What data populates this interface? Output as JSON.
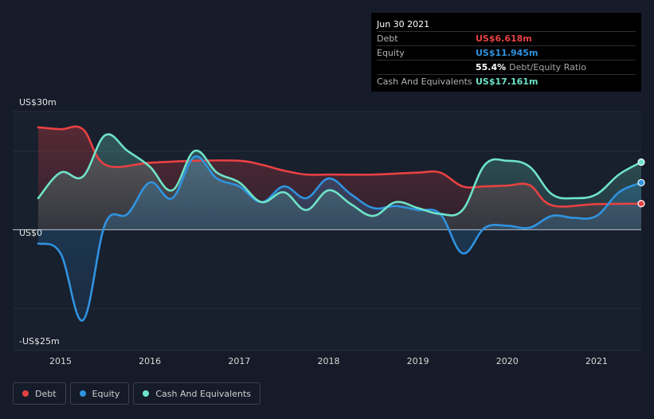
{
  "tooltip": {
    "date": "Jun 30 2021",
    "rows": [
      {
        "label": "Debt",
        "value": "US$6.618m",
        "color": "#e84142"
      },
      {
        "label": "Equity",
        "value": "US$11.945m",
        "color": "#2f93e0"
      },
      {
        "label": "",
        "value": "55.4%",
        "note": "Debt/Equity Ratio"
      },
      {
        "label": "Cash And Equivalents",
        "value": "US$17.161m",
        "color": "#6fe3c9"
      }
    ]
  },
  "legend": [
    {
      "label": "Debt",
      "color": "#e84142"
    },
    {
      "label": "Equity",
      "color": "#2f93e0"
    },
    {
      "label": "Cash And Equivalents",
      "color": "#6fe3c9"
    }
  ],
  "chart_data": {
    "type": "line",
    "y_tick_labels": [
      "US$30m",
      "US$0",
      "-US$25m"
    ],
    "y_ticks": [
      30,
      0,
      -25
    ],
    "x_tick_labels": [
      "2015",
      "2016",
      "2017",
      "2018",
      "2019",
      "2020",
      "2021"
    ],
    "x_ticks": [
      2015,
      2016,
      2017,
      2018,
      2019,
      2020,
      2021
    ],
    "xlim": [
      2014.75,
      2021.5
    ],
    "ylim": [
      -25,
      30
    ],
    "series": [
      {
        "name": "Debt",
        "color": "#e84142",
        "x": [
          2014.75,
          2015.0,
          2015.25,
          2015.5,
          2016.0,
          2016.5,
          2017.0,
          2017.25,
          2017.5,
          2017.75,
          2018.0,
          2018.5,
          2019.0,
          2019.25,
          2019.5,
          2019.75,
          2020.0,
          2020.25,
          2020.5,
          2021.0,
          2021.5
        ],
        "y": [
          26,
          25.5,
          25.5,
          16.5,
          17,
          17.5,
          17.5,
          16.5,
          15,
          14,
          14,
          14,
          14.5,
          14.5,
          11,
          11,
          11.2,
          11.3,
          6.2,
          6.5,
          6.618
        ]
      },
      {
        "name": "Equity",
        "color": "#2f93e0",
        "x": [
          2014.75,
          2015.0,
          2015.25,
          2015.5,
          2015.75,
          2016.0,
          2016.25,
          2016.5,
          2016.75,
          2017.0,
          2017.25,
          2017.5,
          2017.75,
          2018.0,
          2018.25,
          2018.5,
          2018.75,
          2019.0,
          2019.25,
          2019.5,
          2019.75,
          2020.0,
          2020.25,
          2020.5,
          2020.75,
          2021.0,
          2021.25,
          2021.5
        ],
        "y": [
          -3.5,
          -6,
          -23,
          1.5,
          4,
          12,
          8,
          18.5,
          13,
          11,
          7,
          11,
          8,
          13,
          9,
          5.5,
          6,
          5,
          4,
          -6,
          0.5,
          1,
          0.5,
          3.5,
          3,
          3.5,
          9.5,
          11.945
        ]
      },
      {
        "name": "Cash And Equivalents",
        "color": "#6fe3c9",
        "x": [
          2014.75,
          2015.0,
          2015.25,
          2015.5,
          2015.75,
          2016.0,
          2016.25,
          2016.5,
          2016.75,
          2017.0,
          2017.25,
          2017.5,
          2017.75,
          2018.0,
          2018.25,
          2018.5,
          2018.75,
          2019.0,
          2019.25,
          2019.5,
          2019.75,
          2020.0,
          2020.25,
          2020.5,
          2020.75,
          2021.0,
          2021.25,
          2021.5
        ],
        "y": [
          8,
          14.5,
          13.5,
          24,
          20,
          16,
          10,
          20,
          14.5,
          12,
          7,
          9.5,
          5,
          10,
          6.5,
          3.5,
          7,
          5.5,
          4,
          5,
          16.5,
          17.5,
          16,
          9,
          8,
          9,
          14,
          17.161
        ]
      }
    ]
  }
}
